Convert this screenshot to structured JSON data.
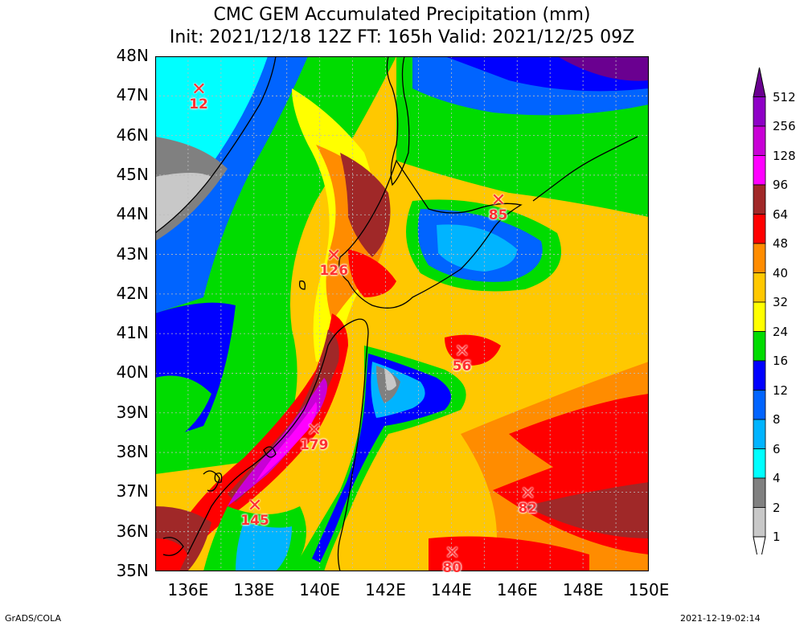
{
  "title": {
    "line1": "CMC GEM Accumulated Precipitation (mm)",
    "line2": "Init: 2021/12/18 12Z  FT: 165h  Valid: 2021/12/25 09Z"
  },
  "axes": {
    "lat_labels": [
      "48N",
      "47N",
      "46N",
      "45N",
      "44N",
      "43N",
      "42N",
      "41N",
      "40N",
      "39N",
      "38N",
      "37N",
      "36N",
      "35N"
    ],
    "lon_labels": [
      "136E",
      "138E",
      "140E",
      "142E",
      "144E",
      "146E",
      "148E",
      "150E"
    ],
    "lat_range": [
      35,
      48
    ],
    "lon_range": [
      135,
      150
    ]
  },
  "markers": [
    {
      "value": "12",
      "lon": 136.3,
      "lat": 47.1
    },
    {
      "value": "126",
      "lon": 140.4,
      "lat": 42.9
    },
    {
      "value": "85",
      "lon": 145.4,
      "lat": 44.3
    },
    {
      "value": "56",
      "lon": 144.3,
      "lat": 40.5
    },
    {
      "value": "179",
      "lon": 139.8,
      "lat": 38.5
    },
    {
      "value": "145",
      "lon": 138.0,
      "lat": 36.6
    },
    {
      "value": "82",
      "lon": 146.3,
      "lat": 36.9
    },
    {
      "value": "80",
      "lon": 144.0,
      "lat": 35.4
    }
  ],
  "legend": {
    "labels": [
      "512",
      "256",
      "128",
      "96",
      "64",
      "48",
      "40",
      "32",
      "24",
      "16",
      "12",
      "8",
      "6",
      "4",
      "2",
      "1"
    ],
    "colors": [
      "#6a0090",
      "#8e00c6",
      "#c800d6",
      "#ff00ff",
      "#a02828",
      "#ff0000",
      "#ff8c00",
      "#ffc800",
      "#ffff00",
      "#00dc00",
      "#0000ff",
      "#0064ff",
      "#00b4ff",
      "#00ffff",
      "#808080",
      "#c8c8c8"
    ]
  },
  "footer": {
    "left": "GrADS/COLA",
    "right": "2021-12-19-02:14"
  }
}
